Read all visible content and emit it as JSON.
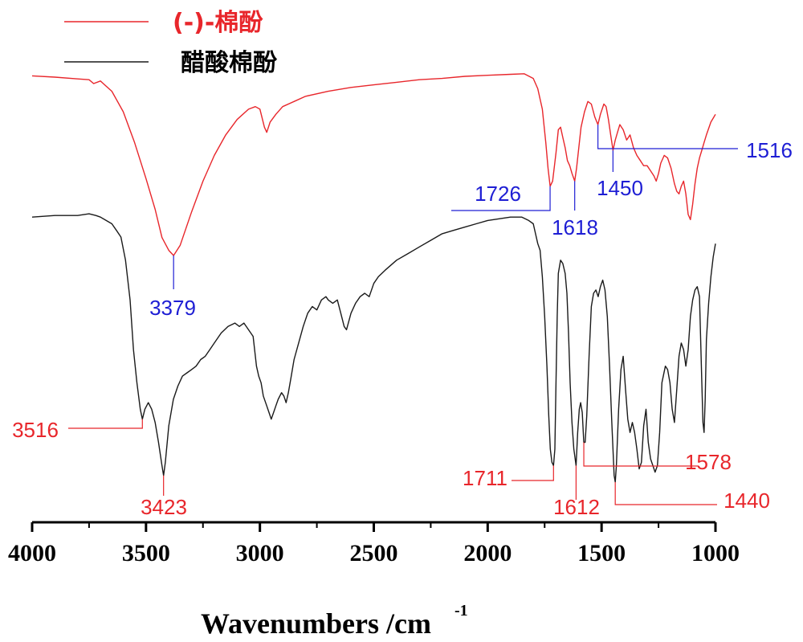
{
  "chart_data": {
    "type": "line",
    "xlabel": "Wavenumbers /cm",
    "xlabel_superscript": "-1",
    "xlim": [
      4000,
      1000
    ],
    "x_reversed": true,
    "x_ticks": [
      "4000",
      "3500",
      "3000",
      "2500",
      "2000",
      "1500",
      "1000"
    ],
    "y_axis_shown": false,
    "grid": false,
    "legend_position": "top-left",
    "series": [
      {
        "name": "(-)-棉酚",
        "color": "#e8262b",
        "points": [
          [
            4000,
            98
          ],
          [
            3900,
            97.5
          ],
          [
            3800,
            96.8
          ],
          [
            3750,
            96.5
          ],
          [
            3730,
            95
          ],
          [
            3700,
            96
          ],
          [
            3650,
            92
          ],
          [
            3600,
            84
          ],
          [
            3550,
            72
          ],
          [
            3500,
            58
          ],
          [
            3460,
            46
          ],
          [
            3430,
            35
          ],
          [
            3400,
            30
          ],
          [
            3379,
            28
          ],
          [
            3350,
            32
          ],
          [
            3300,
            45
          ],
          [
            3250,
            57
          ],
          [
            3200,
            67
          ],
          [
            3150,
            75
          ],
          [
            3100,
            81
          ],
          [
            3050,
            85
          ],
          [
            3020,
            86
          ],
          [
            3000,
            85
          ],
          [
            2980,
            78
          ],
          [
            2970,
            76
          ],
          [
            2955,
            80
          ],
          [
            2930,
            83
          ],
          [
            2900,
            86
          ],
          [
            2850,
            88
          ],
          [
            2800,
            90
          ],
          [
            2700,
            92
          ],
          [
            2600,
            93.5
          ],
          [
            2500,
            94.5
          ],
          [
            2400,
            95.5
          ],
          [
            2300,
            96.5
          ],
          [
            2200,
            97
          ],
          [
            2100,
            97.8
          ],
          [
            2000,
            98.2
          ],
          [
            1900,
            98.6
          ],
          [
            1840,
            98.8
          ],
          [
            1800,
            97
          ],
          [
            1780,
            93
          ],
          [
            1760,
            85
          ],
          [
            1745,
            72
          ],
          [
            1735,
            62
          ],
          [
            1726,
            55
          ],
          [
            1715,
            57
          ],
          [
            1700,
            68
          ],
          [
            1690,
            77
          ],
          [
            1680,
            78
          ],
          [
            1670,
            74
          ],
          [
            1660,
            70
          ],
          [
            1650,
            65
          ],
          [
            1640,
            63
          ],
          [
            1630,
            60
          ],
          [
            1618,
            57
          ],
          [
            1610,
            62
          ],
          [
            1600,
            70
          ],
          [
            1590,
            78
          ],
          [
            1575,
            84
          ],
          [
            1560,
            88
          ],
          [
            1545,
            87
          ],
          [
            1530,
            82
          ],
          [
            1516,
            79
          ],
          [
            1505,
            83
          ],
          [
            1490,
            87
          ],
          [
            1480,
            86
          ],
          [
            1470,
            81
          ],
          [
            1460,
            75
          ],
          [
            1450,
            69
          ],
          [
            1440,
            73
          ],
          [
            1430,
            76
          ],
          [
            1420,
            79
          ],
          [
            1405,
            77
          ],
          [
            1390,
            73
          ],
          [
            1375,
            75
          ],
          [
            1360,
            70
          ],
          [
            1345,
            67
          ],
          [
            1330,
            65
          ],
          [
            1315,
            63
          ],
          [
            1300,
            63
          ],
          [
            1285,
            61
          ],
          [
            1270,
            59
          ],
          [
            1260,
            57
          ],
          [
            1250,
            60
          ],
          [
            1240,
            64
          ],
          [
            1225,
            67
          ],
          [
            1210,
            66
          ],
          [
            1195,
            62
          ],
          [
            1180,
            56
          ],
          [
            1170,
            53
          ],
          [
            1160,
            52
          ],
          [
            1150,
            55
          ],
          [
            1140,
            57
          ],
          [
            1130,
            52
          ],
          [
            1120,
            44
          ],
          [
            1110,
            42
          ],
          [
            1100,
            48
          ],
          [
            1090,
            56
          ],
          [
            1080,
            62
          ],
          [
            1070,
            66
          ],
          [
            1060,
            69
          ],
          [
            1050,
            72
          ],
          [
            1040,
            75
          ],
          [
            1020,
            80
          ],
          [
            1000,
            83
          ]
        ]
      },
      {
        "name": "醋酸棉酚",
        "color": "#1a1a1a",
        "points": [
          [
            4000,
            70
          ],
          [
            3900,
            70.5
          ],
          [
            3800,
            70.5
          ],
          [
            3750,
            71
          ],
          [
            3720,
            70.5
          ],
          [
            3700,
            70
          ],
          [
            3650,
            68
          ],
          [
            3630,
            66
          ],
          [
            3610,
            64
          ],
          [
            3590,
            57
          ],
          [
            3570,
            45
          ],
          [
            3555,
            30
          ],
          [
            3540,
            20
          ],
          [
            3525,
            12
          ],
          [
            3516,
            9
          ],
          [
            3505,
            12
          ],
          [
            3490,
            14
          ],
          [
            3475,
            12
          ],
          [
            3460,
            8
          ],
          [
            3445,
            2
          ],
          [
            3430,
            -5
          ],
          [
            3423,
            -8
          ],
          [
            3415,
            -4
          ],
          [
            3400,
            7
          ],
          [
            3380,
            15
          ],
          [
            3360,
            19
          ],
          [
            3340,
            22
          ],
          [
            3320,
            23
          ],
          [
            3300,
            24
          ],
          [
            3280,
            25
          ],
          [
            3260,
            27
          ],
          [
            3240,
            28
          ],
          [
            3220,
            30
          ],
          [
            3200,
            32
          ],
          [
            3170,
            35
          ],
          [
            3140,
            37
          ],
          [
            3110,
            38
          ],
          [
            3090,
            37
          ],
          [
            3070,
            38
          ],
          [
            3050,
            36
          ],
          [
            3030,
            34
          ],
          [
            3015,
            25
          ],
          [
            3005,
            22
          ],
          [
            2995,
            20
          ],
          [
            2985,
            16
          ],
          [
            2970,
            13
          ],
          [
            2960,
            11
          ],
          [
            2950,
            9
          ],
          [
            2940,
            11
          ],
          [
            2930,
            13
          ],
          [
            2920,
            15
          ],
          [
            2905,
            17
          ],
          [
            2895,
            16
          ],
          [
            2885,
            14
          ],
          [
            2875,
            17
          ],
          [
            2865,
            21
          ],
          [
            2850,
            27
          ],
          [
            2830,
            32
          ],
          [
            2810,
            37
          ],
          [
            2790,
            41
          ],
          [
            2770,
            43
          ],
          [
            2750,
            42
          ],
          [
            2730,
            45
          ],
          [
            2710,
            46
          ],
          [
            2700,
            45
          ],
          [
            2680,
            44
          ],
          [
            2660,
            45
          ],
          [
            2645,
            41
          ],
          [
            2630,
            37
          ],
          [
            2620,
            36
          ],
          [
            2600,
            41
          ],
          [
            2580,
            44
          ],
          [
            2560,
            46
          ],
          [
            2540,
            47
          ],
          [
            2520,
            46
          ],
          [
            2500,
            50
          ],
          [
            2480,
            52
          ],
          [
            2450,
            54
          ],
          [
            2400,
            57
          ],
          [
            2350,
            59
          ],
          [
            2300,
            61
          ],
          [
            2250,
            63
          ],
          [
            2200,
            65
          ],
          [
            2150,
            66
          ],
          [
            2100,
            67
          ],
          [
            2050,
            68
          ],
          [
            2000,
            69
          ],
          [
            1950,
            69.5
          ],
          [
            1900,
            70
          ],
          [
            1850,
            70
          ],
          [
            1820,
            69
          ],
          [
            1800,
            68
          ],
          [
            1790,
            65
          ],
          [
            1780,
            62
          ],
          [
            1770,
            60
          ],
          [
            1760,
            52
          ],
          [
            1750,
            40
          ],
          [
            1740,
            25
          ],
          [
            1732,
            10
          ],
          [
            1725,
            0
          ],
          [
            1718,
            -4
          ],
          [
            1711,
            -5
          ],
          [
            1705,
            0
          ],
          [
            1700,
            20
          ],
          [
            1695,
            40
          ],
          [
            1690,
            53
          ],
          [
            1680,
            57
          ],
          [
            1670,
            56
          ],
          [
            1660,
            53
          ],
          [
            1652,
            47
          ],
          [
            1645,
            35
          ],
          [
            1638,
            20
          ],
          [
            1630,
            8
          ],
          [
            1622,
            0
          ],
          [
            1612,
            -5
          ],
          [
            1605,
            5
          ],
          [
            1598,
            12
          ],
          [
            1592,
            14
          ],
          [
            1585,
            11
          ],
          [
            1578,
            2
          ],
          [
            1572,
            2
          ],
          [
            1565,
            10
          ],
          [
            1555,
            28
          ],
          [
            1545,
            43
          ],
          [
            1535,
            47
          ],
          [
            1525,
            48
          ],
          [
            1515,
            46
          ],
          [
            1505,
            49
          ],
          [
            1495,
            51
          ],
          [
            1485,
            48
          ],
          [
            1475,
            40
          ],
          [
            1465,
            25
          ],
          [
            1455,
            8
          ],
          [
            1445,
            -8
          ],
          [
            1440,
            -10
          ],
          [
            1435,
            -5
          ],
          [
            1425,
            12
          ],
          [
            1415,
            24
          ],
          [
            1405,
            28
          ],
          [
            1395,
            18
          ],
          [
            1385,
            9
          ],
          [
            1375,
            5
          ],
          [
            1365,
            8
          ],
          [
            1355,
            5
          ],
          [
            1345,
            0
          ],
          [
            1335,
            -6
          ],
          [
            1325,
            -4
          ],
          [
            1315,
            7
          ],
          [
            1305,
            12
          ],
          [
            1295,
            2
          ],
          [
            1285,
            -3
          ],
          [
            1275,
            -5
          ],
          [
            1265,
            -7
          ],
          [
            1255,
            -5
          ],
          [
            1245,
            5
          ],
          [
            1235,
            20
          ],
          [
            1220,
            25
          ],
          [
            1210,
            24
          ],
          [
            1200,
            20
          ],
          [
            1190,
            12
          ],
          [
            1180,
            8
          ],
          [
            1170,
            18
          ],
          [
            1160,
            28
          ],
          [
            1150,
            32
          ],
          [
            1140,
            30
          ],
          [
            1130,
            25
          ],
          [
            1120,
            30
          ],
          [
            1110,
            40
          ],
          [
            1100,
            45
          ],
          [
            1090,
            48
          ],
          [
            1080,
            49
          ],
          [
            1070,
            46
          ],
          [
            1060,
            20
          ],
          [
            1055,
            8
          ],
          [
            1050,
            5
          ],
          [
            1045,
            15
          ],
          [
            1040,
            33
          ],
          [
            1030,
            44
          ],
          [
            1020,
            52
          ],
          [
            1010,
            58
          ],
          [
            1000,
            62
          ]
        ]
      }
    ],
    "annotations": [
      {
        "label": "3379",
        "x": 3379,
        "series": "(-)-棉酚",
        "color": "#1e1ed4"
      },
      {
        "label": "1726",
        "x": 1726,
        "series": "(-)-棉酚",
        "color": "#1e1ed4"
      },
      {
        "label": "1618",
        "x": 1618,
        "series": "(-)-棉酚",
        "color": "#1e1ed4"
      },
      {
        "label": "1450",
        "x": 1450,
        "series": "(-)-棉酚",
        "color": "#1e1ed4"
      },
      {
        "label": "1516",
        "x": 1516,
        "series": "(-)-棉酚",
        "color": "#1e1ed4"
      },
      {
        "label": "3516",
        "x": 3516,
        "series": "醋酸棉酚",
        "color": "#e8262b"
      },
      {
        "label": "3423",
        "x": 3423,
        "series": "醋酸棉酚",
        "color": "#e8262b"
      },
      {
        "label": "1711",
        "x": 1711,
        "series": "醋酸棉酚",
        "color": "#e8262b"
      },
      {
        "label": "1612",
        "x": 1612,
        "series": "醋酸棉酚",
        "color": "#e8262b"
      },
      {
        "label": "1578",
        "x": 1578,
        "series": "醋酸棉酚",
        "color": "#e8262b"
      },
      {
        "label": "1440",
        "x": 1440,
        "series": "醋酸棉酚",
        "color": "#e8262b"
      }
    ]
  }
}
